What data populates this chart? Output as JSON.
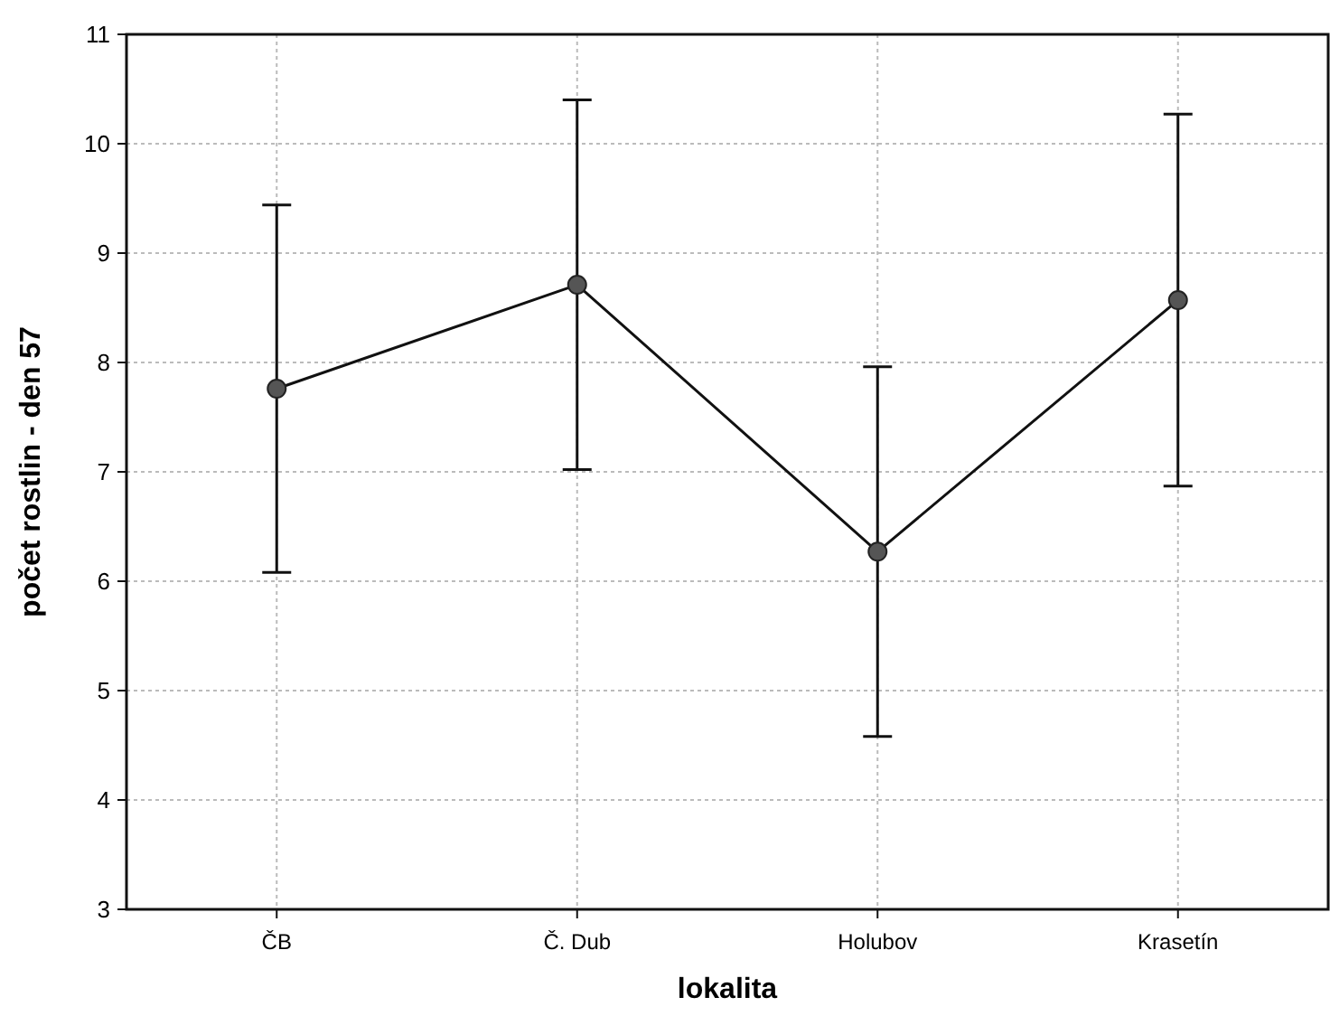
{
  "chart_data": {
    "type": "line",
    "xlabel": "lokalita",
    "ylabel": "počet rostlin - den 57",
    "categories": [
      "ČB",
      "Č. Dub",
      "Holubov",
      "Krasetín"
    ],
    "series": [
      {
        "color": "#555555",
        "values": [
          7.76,
          8.71,
          6.27,
          8.57
        ],
        "errors": [
          1.68,
          1.69,
          1.69,
          1.7
        ]
      }
    ],
    "ylim": [
      3,
      11
    ],
    "yticks": [
      3,
      4,
      5,
      6,
      7,
      8,
      9,
      10,
      11
    ],
    "grid": true,
    "marker": "circle",
    "line_style": "solid"
  }
}
